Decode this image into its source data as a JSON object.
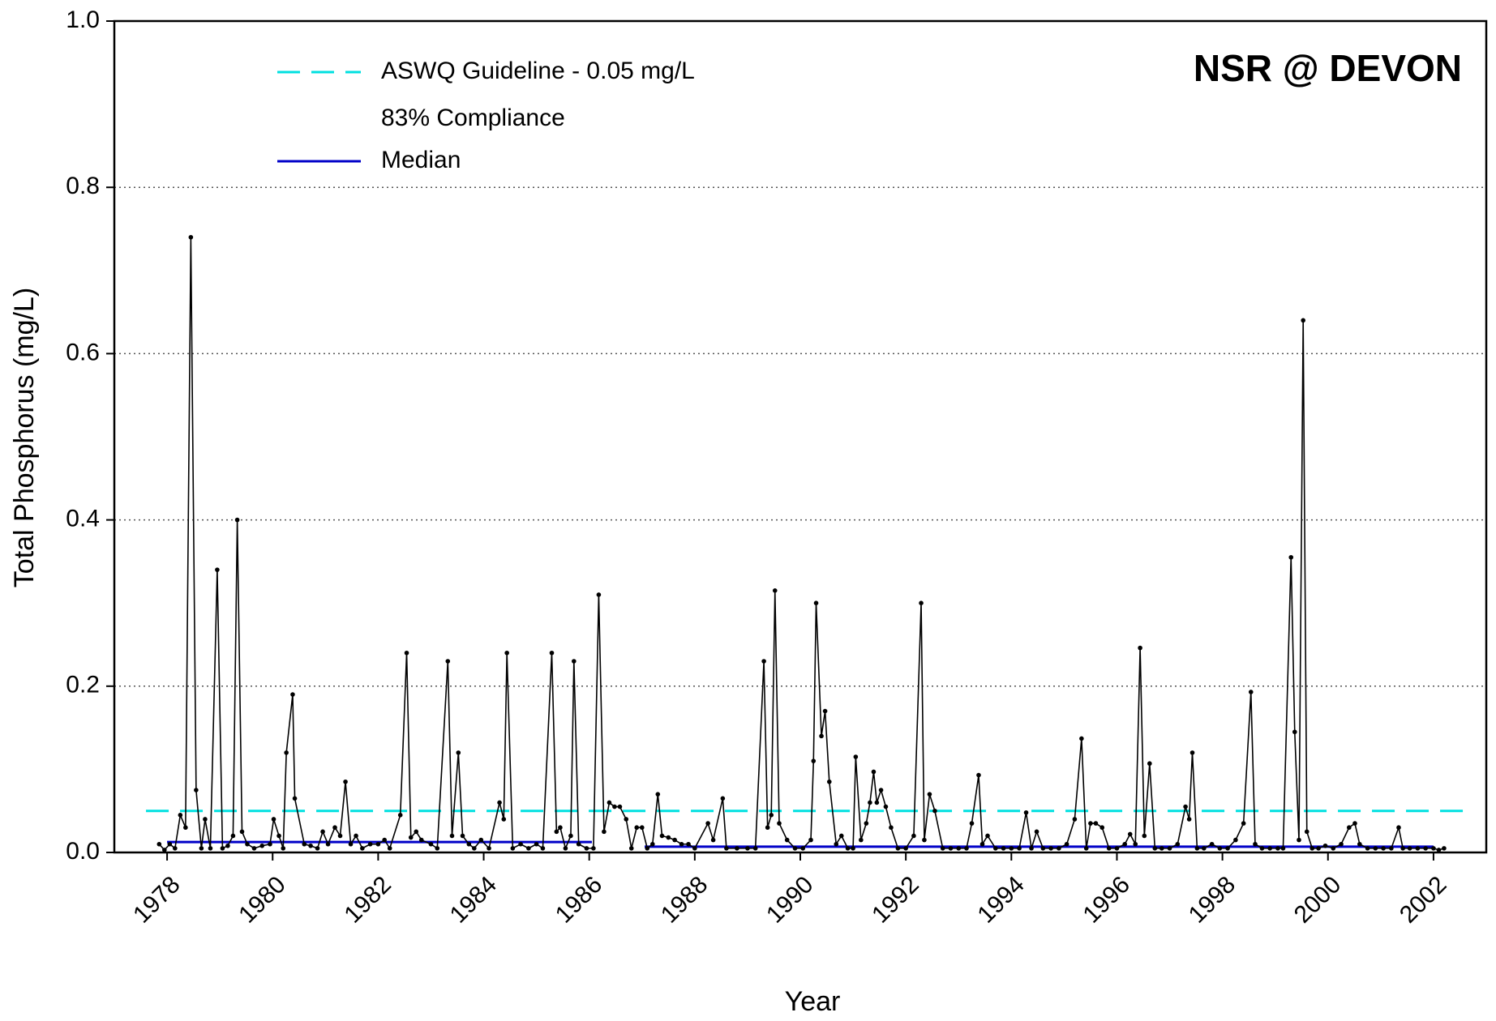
{
  "chart_data": {
    "type": "line",
    "title": "NSR @ DEVON",
    "xlabel": "Year",
    "ylabel": "Total Phosphorus (mg/L)",
    "annotations": [
      "83% Compliance"
    ],
    "xlim": [
      1977,
      2003
    ],
    "xticks": [
      1978,
      1980,
      1982,
      1984,
      1986,
      1988,
      1990,
      1992,
      1994,
      1996,
      1998,
      2000,
      2002
    ],
    "ylim": [
      0,
      1
    ],
    "yticks": [
      {
        "value": 0,
        "label": "0.0"
      },
      0.2,
      0.4,
      0.6,
      0.8,
      {
        "value": 1,
        "label": "1.0"
      }
    ],
    "grid": true,
    "series": [
      {
        "name": "ASWQ Guideline - 0.05 mg/L",
        "color": "#00e0e0",
        "style": "dashed",
        "x": [
          1977.6,
          2002.6
        ],
        "values": [
          0.05,
          0.05
        ]
      },
      {
        "name": "Median",
        "color": "#0000c8",
        "style": "solid",
        "x": [
          1978.0,
          1986.05,
          1986.5,
          1987.05,
          2002.0
        ],
        "values": [
          0.0125,
          0.0125,
          null,
          0.007,
          0.007
        ]
      },
      {
        "color": "#000000",
        "style": "solid",
        "markers": true,
        "x": [
          1977.85,
          1977.95,
          1978.05,
          1978.15,
          1978.25,
          1978.35,
          1978.45,
          1978.55,
          1978.65,
          1978.72,
          1978.82,
          1978.95,
          1979.05,
          1979.15,
          1979.25,
          1979.33,
          1979.42,
          1979.52,
          1979.65,
          1979.8,
          1979.95,
          1980.02,
          1980.12,
          1980.2,
          1980.26,
          1980.38,
          1980.42,
          1980.6,
          1980.72,
          1980.85,
          1980.95,
          1981.05,
          1981.18,
          1981.28,
          1981.38,
          1981.48,
          1981.58,
          1981.7,
          1981.85,
          1982.0,
          1982.12,
          1982.22,
          1982.42,
          1982.54,
          1982.62,
          1982.72,
          1982.82,
          1983.0,
          1983.12,
          1983.32,
          1983.4,
          1983.52,
          1983.6,
          1983.72,
          1983.82,
          1983.95,
          1984.1,
          1984.3,
          1984.38,
          1984.44,
          1984.55,
          1984.7,
          1984.85,
          1985.0,
          1985.12,
          1985.29,
          1985.38,
          1985.45,
          1985.55,
          1985.65,
          1985.71,
          1985.8,
          1985.95,
          1986.08,
          1986.18,
          1986.28,
          1986.38,
          1986.48,
          1986.58,
          1986.7,
          1986.8,
          1986.9,
          1987.0,
          1987.1,
          1987.2,
          1987.3,
          1987.38,
          1987.5,
          1987.62,
          1987.75,
          1987.88,
          1988.0,
          1988.25,
          1988.35,
          1988.53,
          1988.6,
          1988.8,
          1989.0,
          1989.15,
          1989.31,
          1989.38,
          1989.45,
          1989.52,
          1989.6,
          1989.75,
          1989.9,
          1990.05,
          1990.2,
          1990.25,
          1990.3,
          1990.4,
          1990.47,
          1990.55,
          1990.68,
          1990.78,
          1990.9,
          1991.0,
          1991.05,
          1991.15,
          1991.25,
          1991.32,
          1991.39,
          1991.45,
          1991.53,
          1991.62,
          1991.72,
          1991.85,
          1992.0,
          1992.15,
          1992.29,
          1992.35,
          1992.45,
          1992.55,
          1992.7,
          1992.85,
          1993.0,
          1993.15,
          1993.25,
          1993.38,
          1993.45,
          1993.55,
          1993.7,
          1993.85,
          1994.0,
          1994.15,
          1994.28,
          1994.38,
          1994.48,
          1994.6,
          1994.75,
          1994.9,
          1995.05,
          1995.2,
          1995.33,
          1995.42,
          1995.5,
          1995.6,
          1995.72,
          1995.85,
          1996.0,
          1996.15,
          1996.25,
          1996.35,
          1996.44,
          1996.52,
          1996.62,
          1996.72,
          1996.85,
          1997.0,
          1997.15,
          1997.3,
          1997.37,
          1997.43,
          1997.52,
          1997.65,
          1997.8,
          1997.95,
          1998.1,
          1998.25,
          1998.4,
          1998.54,
          1998.62,
          1998.75,
          1998.9,
          1999.05,
          1999.15,
          1999.3,
          1999.37,
          1999.45,
          1999.53,
          1999.6,
          1999.7,
          1999.82,
          1999.95,
          2000.1,
          2000.25,
          2000.4,
          2000.51,
          2000.6,
          2000.75,
          2000.9,
          2001.05,
          2001.2,
          2001.34,
          2001.42,
          2001.55,
          2001.7,
          2001.85,
          2002.0,
          2002.1,
          2002.2
        ],
        "values": [
          0.01,
          0.003,
          0.01,
          0.005,
          0.045,
          0.03,
          0.74,
          0.075,
          0.005,
          0.04,
          0.005,
          0.34,
          0.005,
          0.008,
          0.02,
          0.4,
          0.025,
          0.01,
          0.005,
          0.008,
          0.01,
          0.04,
          0.02,
          0.005,
          0.12,
          0.19,
          0.065,
          0.01,
          0.008,
          0.005,
          0.025,
          0.01,
          0.03,
          0.02,
          0.085,
          0.01,
          0.02,
          0.005,
          0.01,
          0.01,
          0.015,
          0.005,
          0.045,
          0.24,
          0.018,
          0.025,
          0.015,
          0.01,
          0.005,
          0.23,
          0.02,
          0.12,
          0.02,
          0.01,
          0.005,
          0.015,
          0.005,
          0.06,
          0.04,
          0.24,
          0.005,
          0.01,
          0.005,
          0.01,
          0.005,
          0.24,
          0.025,
          0.03,
          0.005,
          0.02,
          0.23,
          0.01,
          0.005,
          0.005,
          0.31,
          0.025,
          0.06,
          0.055,
          0.055,
          0.04,
          0.005,
          0.03,
          0.03,
          0.005,
          0.01,
          0.07,
          0.02,
          0.018,
          0.015,
          0.01,
          0.01,
          0.005,
          0.035,
          0.015,
          0.065,
          0.005,
          0.005,
          0.005,
          0.005,
          0.23,
          0.03,
          0.045,
          0.315,
          0.035,
          0.015,
          0.005,
          0.005,
          0.015,
          0.11,
          0.3,
          0.14,
          0.17,
          0.085,
          0.01,
          0.02,
          0.005,
          0.005,
          0.115,
          0.015,
          0.035,
          0.06,
          0.097,
          0.06,
          0.075,
          0.055,
          0.03,
          0.005,
          0.005,
          0.02,
          0.3,
          0.015,
          0.07,
          0.05,
          0.005,
          0.005,
          0.005,
          0.005,
          0.035,
          0.093,
          0.01,
          0.02,
          0.005,
          0.005,
          0.005,
          0.005,
          0.048,
          0.005,
          0.025,
          0.005,
          0.005,
          0.005,
          0.01,
          0.04,
          0.137,
          0.005,
          0.035,
          0.035,
          0.03,
          0.005,
          0.005,
          0.01,
          0.022,
          0.01,
          0.246,
          0.02,
          0.107,
          0.005,
          0.005,
          0.005,
          0.01,
          0.055,
          0.04,
          0.12,
          0.005,
          0.005,
          0.01,
          0.005,
          0.005,
          0.015,
          0.035,
          0.193,
          0.01,
          0.005,
          0.005,
          0.005,
          0.005,
          0.355,
          0.145,
          0.015,
          0.64,
          0.025,
          0.005,
          0.005,
          0.008,
          0.005,
          0.01,
          0.03,
          0.035,
          0.01,
          0.005,
          0.005,
          0.005,
          0.005,
          0.03,
          0.005,
          0.005,
          0.005,
          0.005,
          0.005,
          0.003,
          0.005
        ]
      }
    ]
  }
}
